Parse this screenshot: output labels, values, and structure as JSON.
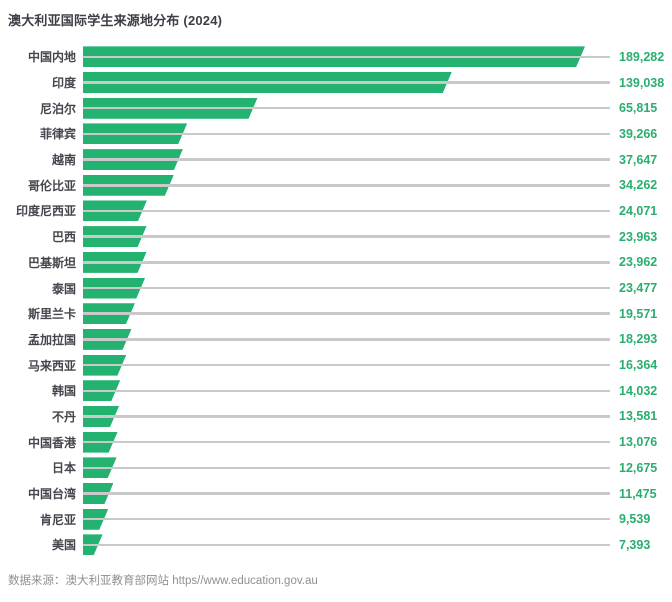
{
  "title": "澳大利亚国际学生来源地分布 (2024)",
  "source_note": "数据来源：澳大利亚教育部网站 https//www.education.gov.au",
  "colors": {
    "bar_green": "#24b271",
    "value_text_green": "#29ae6f",
    "label_text": "#45454e",
    "title_text": "#3e3e46",
    "baseline_gray": "#c9c9c9",
    "source_text": "#909090"
  },
  "chart_data": {
    "type": "bar",
    "orientation": "horizontal",
    "title": "澳大利亚国际学生来源地分布 (2024)",
    "categories": [
      "中国内地",
      "印度",
      "尼泊尔",
      "菲律宾",
      "越南",
      "哥伦比亚",
      "印度尼西亚",
      "巴西",
      "巴基斯坦",
      "泰国",
      "斯里兰卡",
      "孟加拉国",
      "马来西亚",
      "韩国",
      "不丹",
      "中国香港",
      "日本",
      "中国台湾",
      "肯尼亚",
      "美国"
    ],
    "values": [
      189282,
      139038,
      65815,
      39266,
      37647,
      34262,
      24071,
      23963,
      23962,
      23477,
      19571,
      18293,
      16364,
      14032,
      13581,
      13076,
      12675,
      11475,
      9539,
      7393
    ],
    "value_labels": [
      "189,282",
      "139,038",
      "65,815",
      "39,266",
      "37,647",
      "34,262",
      "24,071",
      "23,963",
      "23,962",
      "23,477",
      "19,571",
      "18,293",
      "16,364",
      "14,032",
      "13,581",
      "13,076",
      "12,675",
      "11,475",
      "9,539",
      "7,393"
    ],
    "xlim": [
      0,
      189282
    ],
    "grid": false,
    "legend": false,
    "value_label_position": "right-of-chart",
    "source": "数据来源：澳大利亚教育部网站 https//www.education.gov.au"
  }
}
